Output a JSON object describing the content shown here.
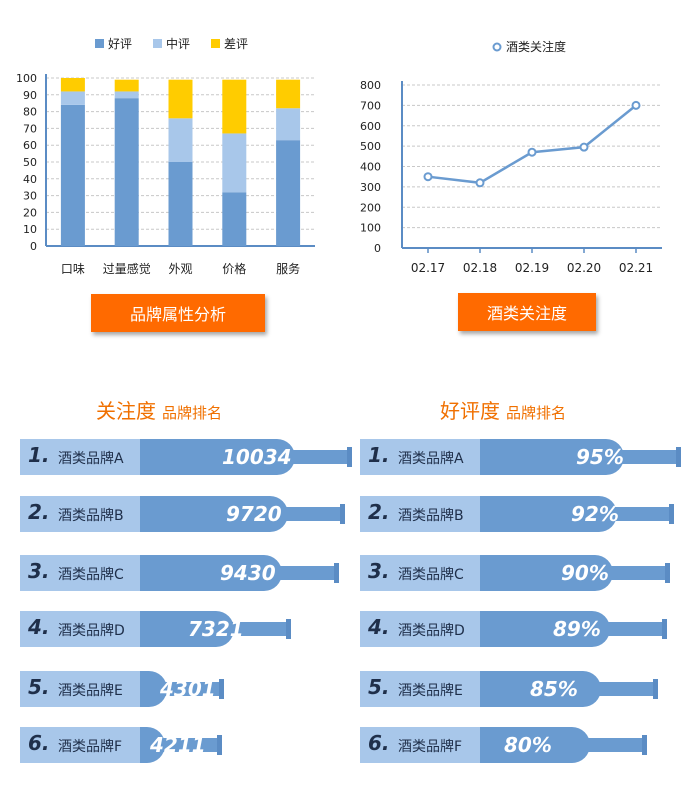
{
  "chart_data": [
    {
      "type": "bar",
      "stacked": true,
      "categories": [
        "口味",
        "过量感觉",
        "外观",
        "价格",
        "服务"
      ],
      "series": [
        {
          "name": "好评",
          "values": [
            84,
            88,
            50,
            32,
            63
          ],
          "color": "#6a9bd0"
        },
        {
          "name": "中评",
          "values": [
            8,
            4,
            26,
            35,
            19
          ],
          "color": "#a8c7ea"
        },
        {
          "name": "差评",
          "values": [
            8,
            7,
            23,
            32,
            17
          ],
          "color": "#ffcc00"
        }
      ],
      "ylim": [
        0,
        100
      ],
      "yticks": [
        "0",
        "10",
        "20",
        "30",
        "40",
        "50",
        "60",
        "70",
        "80",
        "90",
        "100"
      ],
      "grid": true,
      "legend": "top"
    },
    {
      "type": "line",
      "x": [
        "02.17",
        "02.18",
        "02.19",
        "02.20",
        "02.21"
      ],
      "series": [
        {
          "name": "酒类关注度",
          "values": [
            350,
            320,
            470,
            495,
            700
          ],
          "color": "#6a9bd0"
        }
      ],
      "ylim": [
        0,
        800
      ],
      "yticks": [
        "0",
        "100",
        "200",
        "300",
        "400",
        "500",
        "600",
        "700",
        "800"
      ],
      "grid": true,
      "legend": "top"
    }
  ],
  "buttons": {
    "brand_attr": "品牌属性分析",
    "attention": "酒类关注度"
  },
  "rankings": {
    "attention": {
      "title": "关注度",
      "subtitle": "品牌排名",
      "items": [
        {
          "rank": "1.",
          "name": "酒类品牌A",
          "value": "10034",
          "level": 1.0
        },
        {
          "rank": "2.",
          "name": "酒类品牌B",
          "value": "9720",
          "level": 0.969
        },
        {
          "rank": "3.",
          "name": "酒类品牌C",
          "value": "9430",
          "level": 0.94
        },
        {
          "rank": "4.",
          "name": "酒类品牌D",
          "value": "7321",
          "level": 0.73
        },
        {
          "rank": "5.",
          "name": "酒类品牌E",
          "value": "4301",
          "level": 0.43
        },
        {
          "rank": "6.",
          "name": "酒类品牌F",
          "value": "4211",
          "level": 0.42
        }
      ]
    },
    "rating": {
      "title": "好评度",
      "subtitle": "品牌排名",
      "items": [
        {
          "rank": "1.",
          "name": "酒类品牌A",
          "value": "95%",
          "level": 0.95
        },
        {
          "rank": "2.",
          "name": "酒类品牌B",
          "value": "92%",
          "level": 0.92
        },
        {
          "rank": "3.",
          "name": "酒类品牌C",
          "value": "90%",
          "level": 0.9
        },
        {
          "rank": "4.",
          "name": "酒类品牌D",
          "value": "89%",
          "level": 0.89
        },
        {
          "rank": "5.",
          "name": "酒类品牌E",
          "value": "85%",
          "level": 0.85
        },
        {
          "rank": "6.",
          "name": "酒类品牌F",
          "value": "80%",
          "level": 0.8
        }
      ]
    }
  }
}
